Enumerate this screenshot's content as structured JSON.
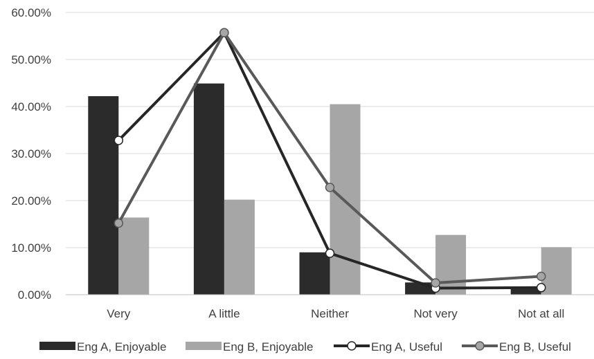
{
  "chart_data": {
    "type": "bar",
    "title": "",
    "xlabel": "",
    "ylabel": "",
    "categories": [
      "Very",
      "A little",
      "Neither",
      "Not very",
      "Not at all"
    ],
    "ylim": [
      0,
      60
    ],
    "yticks": [
      0,
      10,
      20,
      30,
      40,
      50,
      60
    ],
    "ytick_labels": [
      "0.00%",
      "10.00%",
      "20.00%",
      "30.00%",
      "40.00%",
      "50.00%",
      "60.00%"
    ],
    "grid": true,
    "legend_position": "bottom",
    "bar_series": [
      {
        "name": "Eng A, Enjoyable",
        "color": "#2b2b2b",
        "values": [
          42.2,
          44.9,
          9.0,
          2.6,
          1.6
        ]
      },
      {
        "name": "Eng B, Enjoyable",
        "color": "#a6a6a6",
        "values": [
          16.4,
          20.2,
          40.5,
          12.7,
          10.1
        ]
      }
    ],
    "line_series": [
      {
        "name": "Eng A, Useful",
        "color": "#262626",
        "marker_fill": "#ffffff",
        "values": [
          32.8,
          55.7,
          8.8,
          1.4,
          1.5
        ]
      },
      {
        "name": "Eng B, Useful",
        "color": "#595959",
        "marker_fill": "#a6a6a6",
        "values": [
          15.2,
          55.7,
          22.8,
          2.5,
          3.9
        ]
      }
    ],
    "colors": {
      "axis": "#bfbfbf",
      "grid": "#d9d9d9",
      "text": "#404040"
    }
  }
}
